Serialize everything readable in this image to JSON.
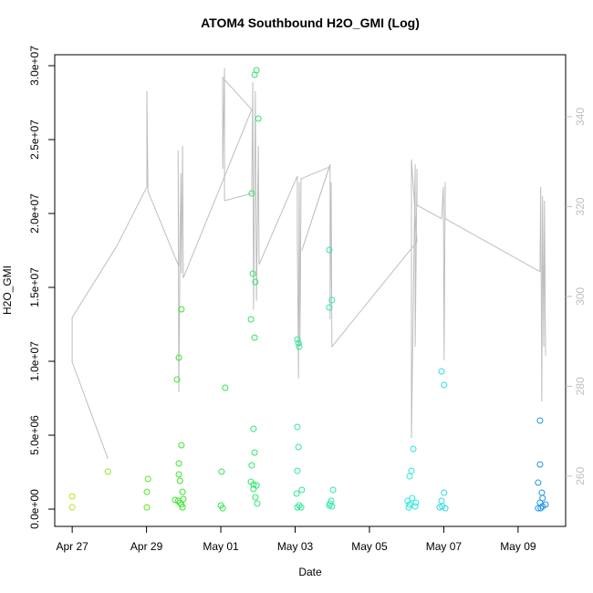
{
  "chart_data": {
    "type": "scatter",
    "title": "ATOM4 Southbound H2O_GMI (Log)",
    "x_label": "Date",
    "y_label": "H2O_GMI",
    "xlim": [
      -0.47,
      13.28
    ],
    "xticks": [
      {
        "value": 0,
        "label": "Apr 27"
      },
      {
        "value": 2,
        "label": "Apr 29"
      },
      {
        "value": 4,
        "label": "May 01"
      },
      {
        "value": 6,
        "label": "May 03"
      },
      {
        "value": 8,
        "label": "May 05"
      },
      {
        "value": 10,
        "label": "May 07"
      },
      {
        "value": 12,
        "label": "May 09"
      }
    ],
    "ylim": [
      -1170000,
      30740000
    ],
    "yticks": [
      {
        "value": 0,
        "label": "0.0e+00"
      },
      {
        "value": 5000000,
        "label": "5.0e+06"
      },
      {
        "value": 10000000,
        "label": "1.0e+07"
      },
      {
        "value": 15000000,
        "label": "1.5e+07"
      },
      {
        "value": 20000000,
        "label": "2.0e+07"
      },
      {
        "value": 25000000,
        "label": "2.5e+07"
      },
      {
        "value": 30000000,
        "label": "3.0e+07"
      }
    ],
    "y2lim": [
      248.8,
      353.8
    ],
    "y2ticks": [
      260,
      280,
      300,
      320,
      340
    ],
    "series": [
      {
        "style": "points",
        "color_scale": [
          "#b4e61e",
          "#2ee62e",
          "#2ee6a0",
          "#2ee6e6",
          "#1e90e6"
        ],
        "x": [
          0,
          0,
          0.96,
          2.04,
          2.01,
          2.01,
          2.82,
          2.87,
          2.94,
          2.94,
          2.87,
          2.87,
          2.9,
          2.97,
          2.77,
          2.85,
          2.9,
          2.94,
          2.99,
          2.97,
          4.05,
          4.0,
          4.02,
          4.12,
          4.91,
          4.96,
          5.01,
          4.83,
          4.86,
          4.93,
          4.81,
          4.91,
          4.88,
          4.91,
          4.83,
          4.81,
          4.88,
          4.96,
          4.88,
          4.93,
          4.98,
          6.06,
          6.09,
          6.11,
          6.06,
          6.09,
          6.06,
          6.18,
          6.04,
          6.06,
          6.16,
          6.11,
          6.92,
          6.99,
          6.92,
          7.02,
          6.97,
          6.94,
          6.99,
          6.92,
          9.18,
          9.13,
          9.08,
          9.03,
          9.08,
          9.15,
          9.23,
          9.06,
          9.25,
          9.94,
          10.01,
          10.01,
          9.94,
          9.96,
          10.04,
          9.89,
          12.59,
          12.59,
          12.54,
          12.64,
          12.66,
          12.59,
          12.66,
          12.54,
          12.74,
          12.61
        ],
        "values": [
          860000,
          120000,
          2530000,
          2040000,
          1170000,
          120000,
          8770000,
          10250000,
          13520000,
          4320000,
          3090000,
          2350000,
          1910000,
          1170000,
          620000,
          560000,
          430000,
          310000,
          680000,
          120000,
          60000,
          250000,
          2530000,
          8210000,
          29380000,
          29690000,
          26420000,
          21360000,
          15930000,
          15370000,
          12840000,
          11600000,
          5430000,
          3830000,
          2960000,
          1850000,
          1670000,
          1600000,
          1360000,
          800000,
          370000,
          11480000,
          11230000,
          10990000,
          5560000,
          4200000,
          2590000,
          1300000,
          1050000,
          120000,
          120000,
          250000,
          17530000,
          14140000,
          13640000,
          1300000,
          560000,
          370000,
          190000,
          250000,
          4070000,
          2590000,
          2220000,
          560000,
          310000,
          740000,
          190000,
          120000,
          430000,
          9320000,
          8400000,
          1110000,
          560000,
          190000,
          60000,
          120000,
          5990000,
          3020000,
          1790000,
          1110000,
          740000,
          430000,
          190000,
          60000,
          310000,
          60000
        ]
      },
      {
        "style": "line",
        "axis": "y2",
        "color": "#bebebe",
        "x": [
          0.96,
          0,
          0,
          1.2,
          2.01,
          2.01,
          2.04,
          2.87,
          2.85,
          2.87,
          2.92,
          2.94,
          2.97,
          2.99,
          4.83,
          4.05,
          4.05,
          4.1,
          4.1,
          4.83,
          4.86,
          4.88,
          4.93,
          4.96,
          5.01,
          5.03,
          6.06,
          6.06,
          6.09,
          6.11,
          6.13,
          6.16,
          6.92,
          6.18,
          6.94,
          6.94,
          6.97,
          6.99,
          9.28,
          9.13,
          9.13,
          9.23,
          9.23,
          9.28,
          9.28,
          9.94,
          9.99,
          10.01,
          10.04,
          10.04,
          12.59,
          12.61,
          12.64,
          12.66,
          12.69,
          12.71,
          12.74
        ],
        "values": [
          263.9,
          285.4,
          295.3,
          311.2,
          324.4,
          345.7,
          323.4,
          306.7,
          332.5,
          278.7,
          327.4,
          305.1,
          333.5,
          304.1,
          341.6,
          348.7,
          328.4,
          350.8,
          321.3,
          322.9,
          347.7,
          297.0,
          345.7,
          299.0,
          333.5,
          307.1,
          326.8,
          313.2,
          281.7,
          325.4,
          288.8,
          326.2,
          328.8,
          310.2,
          329.4,
          294.9,
          325.4,
          288.8,
          312.2,
          330.5,
          268.5,
          329.4,
          288.8,
          328.4,
          320.3,
          317.3,
          324.4,
          285.8,
          325.4,
          317.3,
          305.5,
          324.4,
          276.6,
          322.3,
          288.8,
          321.3,
          286.8
        ]
      }
    ]
  }
}
